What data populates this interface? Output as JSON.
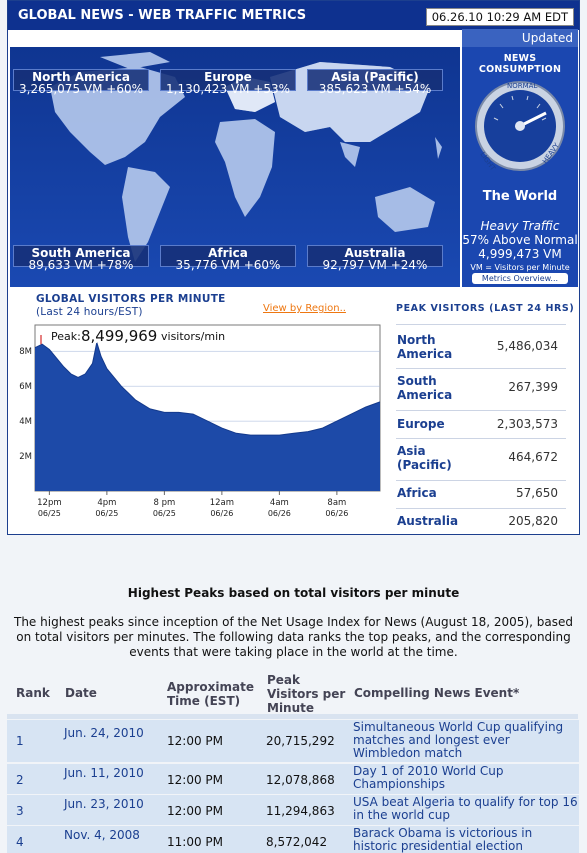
{
  "header": {
    "title": "GLOBAL NEWS - WEB TRAFFIC METRICS",
    "timestamp": "06.26.10 10:29 AM EDT"
  },
  "status": {
    "updated": "Updated"
  },
  "regions": [
    {
      "name": "North America",
      "stats": "3,265,075 VM +60%"
    },
    {
      "name": "Europe",
      "stats": "1,130,423 VM +53%"
    },
    {
      "name": "Asia (Pacific)",
      "stats": "385,623 VM +54%"
    },
    {
      "name": "South America",
      "stats": "89,633 VM +78%"
    },
    {
      "name": "Africa",
      "stats": "35,776 VM +60%"
    },
    {
      "name": "Australia",
      "stats": "92,797 VM +24%"
    }
  ],
  "consumption": {
    "title": "NEWS CONSUMPTION",
    "gauge_labels": {
      "normal": "NORMAL",
      "light": "LIGHT",
      "heavy": "HEAVY"
    },
    "gauge_level": 0.57,
    "region": "The World",
    "level": "Heavy Traffic",
    "above": "57% Above Normal",
    "vm": "4,999,473 VM",
    "vm_def": "VM = Visitors per Minute",
    "metrics_link": "Metrics Overview..."
  },
  "chart": {
    "title": "GLOBAL VISITORS PER MINUTE",
    "subtitle": "(Last 24 hours/EST)",
    "view_link": "View by Region..",
    "peak_prefix": "Peak:",
    "peak_value": "8,499,969",
    "peak_unit": "visitors/min"
  },
  "chart_data": {
    "type": "area",
    "title": "GLOBAL VISITORS PER MINUTE",
    "subtitle": "(Last 24 hours/EST)",
    "y_ticks": [
      "2M",
      "4M",
      "6M",
      "8M"
    ],
    "ylim": [
      0,
      9.5
    ],
    "x_ticks": [
      {
        "time": "12pm",
        "date": "06/25"
      },
      {
        "time": "4pm",
        "date": "06/25"
      },
      {
        "time": "8 pm",
        "date": "06/25"
      },
      {
        "time": "12am",
        "date": "06/26"
      },
      {
        "time": "4am",
        "date": "06/26"
      },
      {
        "time": "8am",
        "date": "06/26"
      }
    ],
    "x_hours": [
      0,
      0.5,
      1,
      1.5,
      2,
      2.5,
      3,
      3.5,
      4,
      4.3,
      4.6,
      5,
      6,
      7,
      8,
      9,
      10,
      11,
      12,
      13,
      14,
      15,
      16,
      17,
      18,
      19,
      20,
      21,
      22,
      23,
      24
    ],
    "values_millions": [
      8.2,
      8.4,
      8.1,
      7.6,
      7.1,
      6.7,
      6.5,
      6.7,
      7.3,
      8.5,
      7.7,
      7.0,
      6.0,
      5.2,
      4.7,
      4.5,
      4.5,
      4.4,
      4.0,
      3.6,
      3.3,
      3.2,
      3.2,
      3.2,
      3.3,
      3.4,
      3.6,
      4.0,
      4.4,
      4.8,
      5.1
    ],
    "peak": {
      "label": "Peak:",
      "value": "8,499,969",
      "unit": "visitors/min"
    }
  },
  "peaks": {
    "title": "PEAK VISITORS (LAST 24 HRS)",
    "rows": [
      {
        "region": "North America",
        "value": "5,486,034"
      },
      {
        "region": "South America",
        "value": "267,399"
      },
      {
        "region": "Europe",
        "value": "2,303,573"
      },
      {
        "region": "Asia (Pacific)",
        "value": "464,672"
      },
      {
        "region": "Africa",
        "value": "57,650"
      },
      {
        "region": "Australia",
        "value": "205,820"
      }
    ]
  },
  "article": {
    "heading": "Highest Peaks based on total visitors per minute",
    "intro": "The highest peaks since inception of the Net Usage Index for News (August 18, 2005), based on total visitors per minutes. The following data ranks the top peaks, and the corresponding events that were taking place in the world at the time."
  },
  "table": {
    "headers": {
      "rank": "Rank",
      "date": "Date",
      "time": "Approximate Time (EST)",
      "peak": "Peak Visitors per Minute",
      "event": "Compelling News Event*"
    },
    "rows": [
      {
        "rank": "1",
        "date": "Jun. 24, 2010",
        "time": "12:00 PM",
        "peak": "20,715,292",
        "event": "Simultaneous World Cup qualifying matches and longest ever Wimbledon match"
      },
      {
        "rank": "2",
        "date": "Jun. 11, 2010",
        "time": "12:00 PM",
        "peak": "12,078,868",
        "event": "Day 1 of 2010 World Cup Championships"
      },
      {
        "rank": "3",
        "date": "Jun. 23, 2010",
        "time": "12:00 PM",
        "peak": "11,294,863",
        "event": "USA beat Algeria to qualify for top 16 in the world cup"
      },
      {
        "rank": "4",
        "date": "Nov. 4, 2008",
        "time": "11:00 PM",
        "peak": "8,572,042",
        "event": "Barack Obama is victorious in historic presidential election"
      }
    ]
  }
}
